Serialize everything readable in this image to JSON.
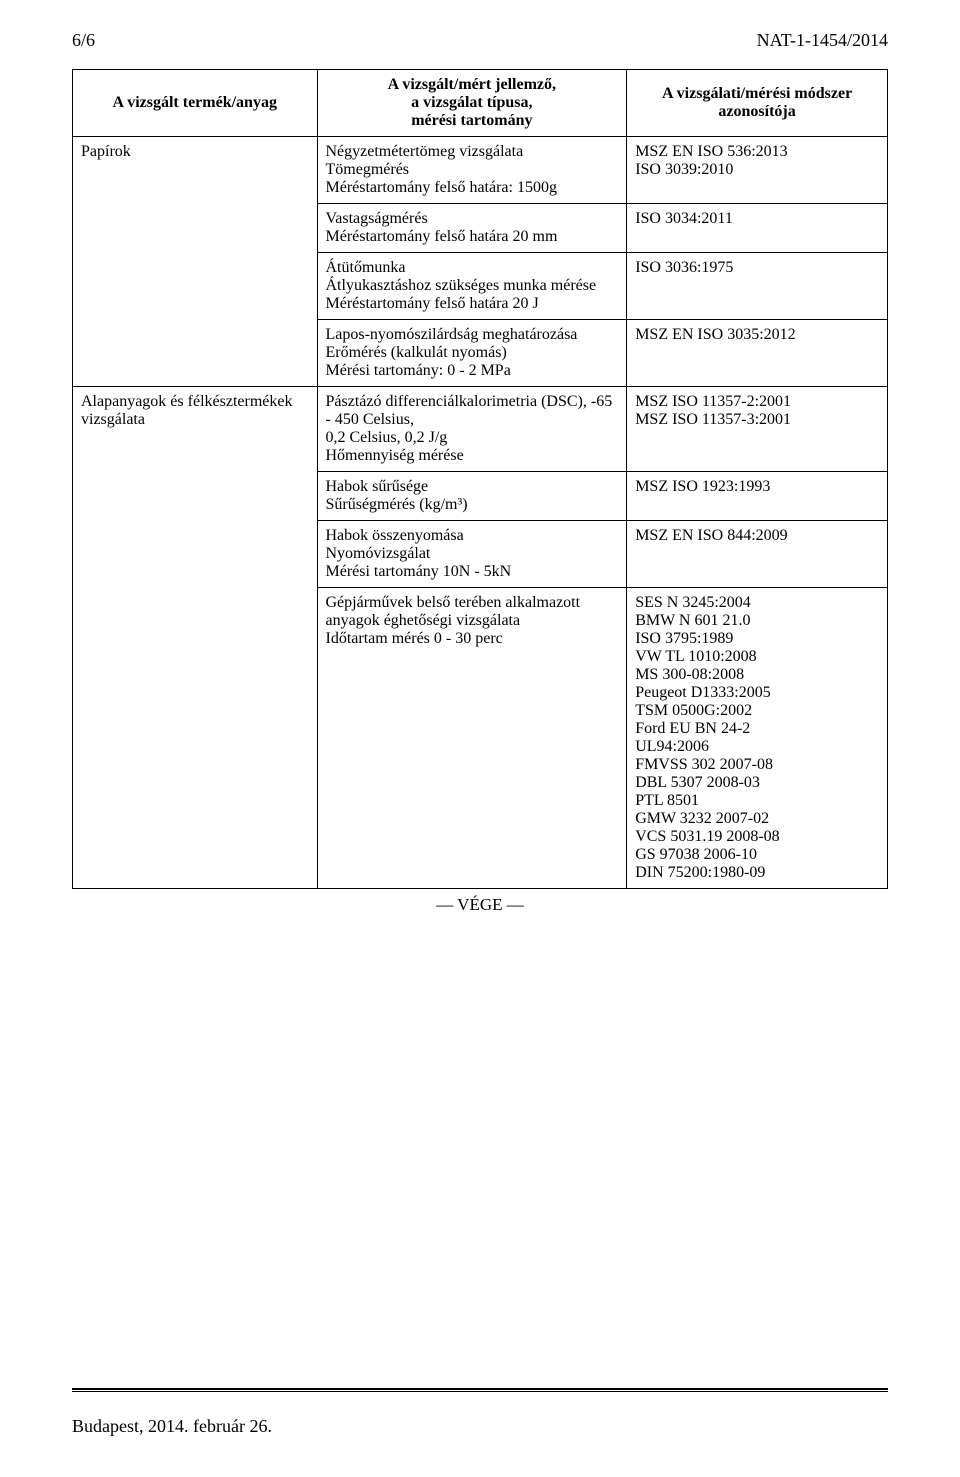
{
  "header": {
    "page_num": "6/6",
    "doc_ref": "NAT-1-1454/2014"
  },
  "table": {
    "headers": {
      "col1": "A vizsgált termék/anyag",
      "col2_l1": "A vizsgált/mért jellemző,",
      "col2_l2": "a vizsgálat típusa,",
      "col2_l3": "mérési tartomány",
      "col3_l1": "A vizsgálati/mérési módszer",
      "col3_l2": "azonosítója"
    },
    "rows": [
      {
        "c1": "Papírok",
        "c2": "Négyzetmétertömeg vizsgálata\nTömegmérés\nMéréstartomány felső határa: 1500g",
        "c3": "MSZ EN ISO 536:2013\nISO 3039:2010"
      },
      {
        "c1": "",
        "c2": "Vastagságmérés\nMéréstartomány felső határa 20 mm",
        "c3": "ISO 3034:2011"
      },
      {
        "c1": "",
        "c2": "Átütőmunka\nÁtlyukasztáshoz szükséges munka mérése\nMéréstartomány felső határa 20 J",
        "c3": "ISO 3036:1975"
      },
      {
        "c1": "",
        "c2": "Lapos-nyomószilárdság meghatározása\nErőmérés (kalkulát nyomás)\nMérési tartomány: 0 - 2 MPa",
        "c3": "MSZ EN ISO 3035:2012"
      },
      {
        "c1": "Alapanyagok és félkésztermékek vizsgálata",
        "c2": "Pásztázó differenciálkalorimetria (DSC), -65 - 450 Celsius,\n0,2 Celsius, 0,2 J/g\nHőmennyiség mérése",
        "c3": "MSZ ISO 11357-2:2001\nMSZ ISO 11357-3:2001"
      },
      {
        "c1": "",
        "c2": "Habok sűrűsége\nSűrűségmérés (kg/m³)",
        "c3": "MSZ ISO 1923:1993"
      },
      {
        "c1": "",
        "c2": "Habok összenyomása\nNyomóvizsgálat\nMérési tartomány 10N - 5kN",
        "c3": "MSZ EN ISO 844:2009"
      },
      {
        "c1": "",
        "c2": "Gépjárművek belső terében alkalmazott anyagok éghetőségi vizsgálata\nIdőtartam mérés 0 - 30 perc",
        "c3": "SES N 3245:2004\nBMW  N 601 21.0\nISO 3795:1989\nVW TL 1010:2008\nMS 300-08:2008\nPeugeot D1333:2005\nTSM 0500G:2002\nFord EU BN 24-2\nUL94:2006\nFMVSS 302 2007-08\nDBL 5307 2008-03\nPTL 8501\nGMW 3232 2007-02\nVCS 5031.19 2008-08\nGS 97038 2006-10\nDIN 75200:1980-09"
      }
    ]
  },
  "vege": "— VÉGE —",
  "footer_date": "Budapest, 2014. február 26."
}
